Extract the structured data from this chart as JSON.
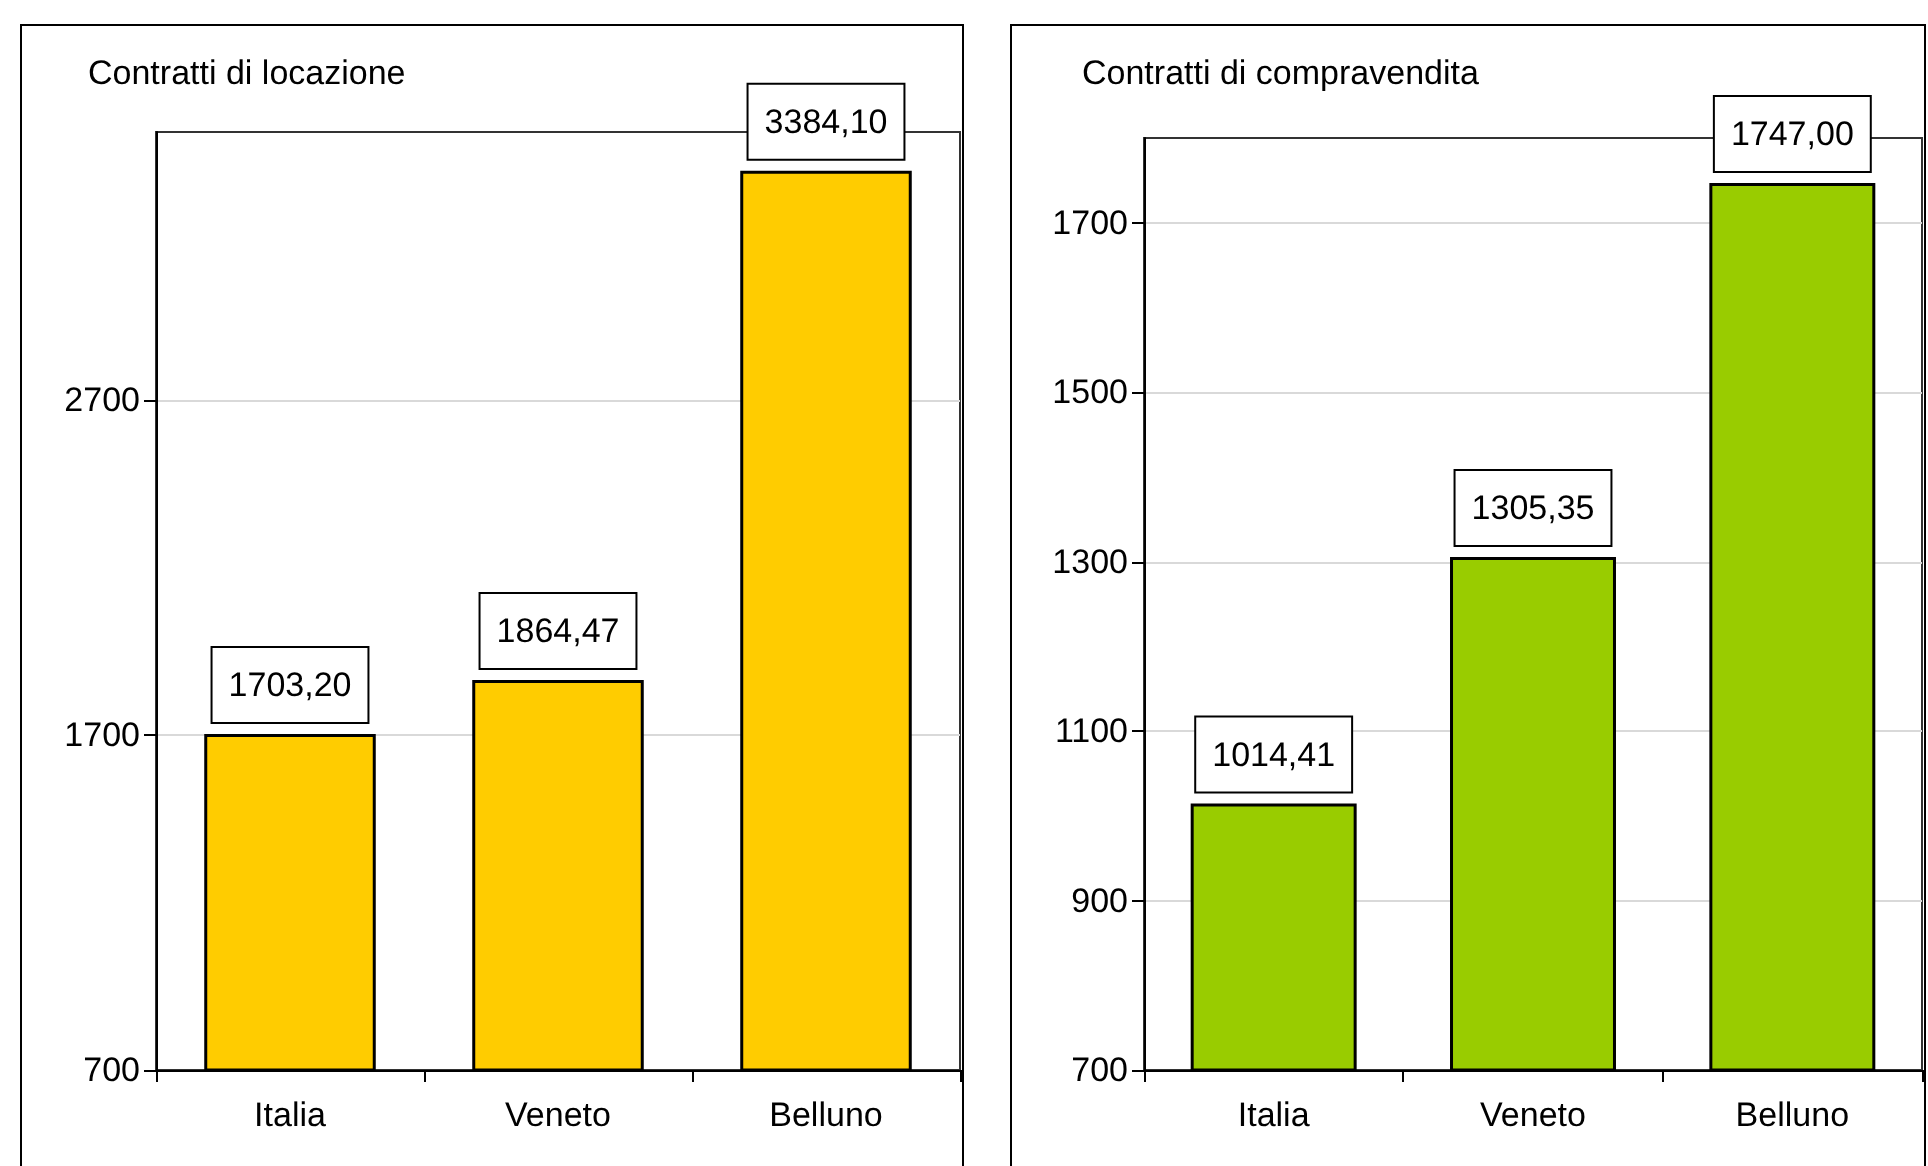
{
  "chart_data": [
    {
      "type": "bar",
      "title": "Contratti di locazione",
      "categories": [
        "Italia",
        "Veneto",
        "Belluno"
      ],
      "values": [
        1703.2,
        1864.47,
        3384.1
      ],
      "value_labels": [
        "1703,20",
        "1864,47",
        "3384,10"
      ],
      "color": "#ffcc00",
      "ylim": [
        700,
        3500
      ],
      "yticks": [
        700,
        1700,
        2700
      ],
      "grid": "y"
    },
    {
      "type": "bar",
      "title": "Contratti di compravendita",
      "categories": [
        "Italia",
        "Veneto",
        "Belluno"
      ],
      "values": [
        1014.41,
        1305.35,
        1747.0
      ],
      "value_labels": [
        "1014,41",
        "1305,35",
        "1747,00"
      ],
      "color": "#99cc00",
      "ylim": [
        700,
        1800
      ],
      "yticks": [
        700,
        900,
        1100,
        1300,
        1500,
        1700
      ],
      "grid": "y"
    }
  ]
}
